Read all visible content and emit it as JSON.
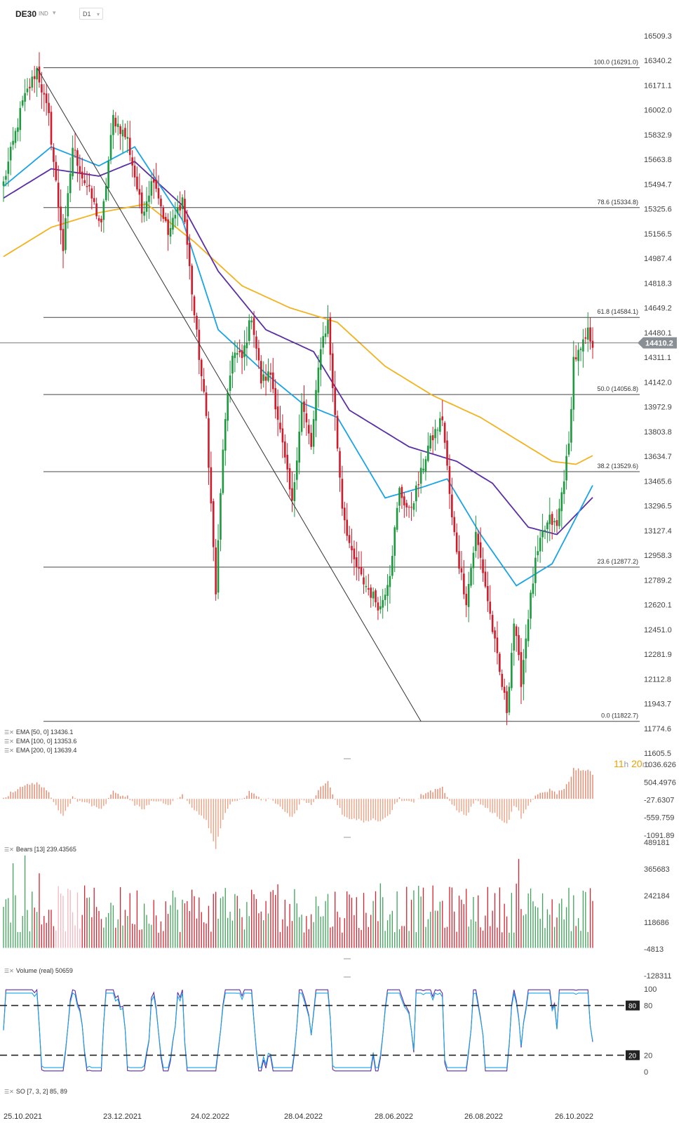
{
  "header": {
    "symbol": "DE30",
    "exchange": "IND",
    "timeframe": "D1"
  },
  "countdown": {
    "hours": "11",
    "h": "h",
    "minutes": "20",
    "m": "m"
  },
  "price_axis": [
    "16509.3",
    "16340.2",
    "16171.1",
    "16002.0",
    "15832.9",
    "15663.8",
    "15494.7",
    "15325.6",
    "15156.5",
    "14987.4",
    "14818.3",
    "14649.2",
    "14480.1",
    "14311.1",
    "14142.0",
    "13972.9",
    "13803.8",
    "13634.7",
    "13465.6",
    "13296.5",
    "13127.4",
    "12958.3",
    "12789.2",
    "12620.1",
    "12451.0",
    "12281.9",
    "12112.8",
    "11943.7",
    "11774.6",
    "11605.5"
  ],
  "current_price": "14410.2",
  "fib_levels": [
    {
      "label": "100.0 (16291.0)",
      "value": 16291.0
    },
    {
      "label": "78.6 (15334.8)",
      "value": 15334.8
    },
    {
      "label": "61.8 (14584.1)",
      "value": 14584.1
    },
    {
      "label": "50.0 (14056.8)",
      "value": 14056.8
    },
    {
      "label": "38.2 (13529.6)",
      "value": 13529.6
    },
    {
      "label": "23.6 (12877.2)",
      "value": 12877.2
    },
    {
      "label": "0.0 (11822.7)",
      "value": 11822.7
    }
  ],
  "ema_labels": [
    {
      "text": "EMA [50, 0]  13436.1",
      "color": "#1aa3e8"
    },
    {
      "text": "EMA [100, 0]  13353.6",
      "color": "#5a2ea6"
    },
    {
      "text": "EMA [200, 0]  13639.4",
      "color": "#f2b320"
    }
  ],
  "bears": {
    "label": "Bears [13]  239.43565",
    "axis": [
      "1036.626",
      "504.4976",
      "-27.6307",
      "-559.759",
      "-1091.89"
    ]
  },
  "volume": {
    "label": "Volume  (real)  50659",
    "axis": [
      "489181",
      "365683",
      "242184",
      "118686",
      "-4813",
      "-128311"
    ]
  },
  "so": {
    "label": "SO [7, 3, 2]  85, 89",
    "axis": [
      "100",
      "80",
      "20",
      "0"
    ],
    "marker_80": "80",
    "marker_20": "20"
  },
  "date_axis": [
    "25.10.2021",
    "23.12.2021",
    "24.02.2022",
    "28.04.2022",
    "28.06.2022",
    "26.08.2022",
    "26.10.2022"
  ],
  "chart_data": {
    "type": "candlestick",
    "x_range": [
      "25.10.2021",
      "11.11.2022"
    ],
    "ylim": [
      11605.5,
      16509.3
    ],
    "anchors": [
      {
        "bar": 0,
        "close": 15500
      },
      {
        "bar": 8,
        "close": 16050
      },
      {
        "bar": 14,
        "close": 16280
      },
      {
        "bar": 19,
        "close": 15950
      },
      {
        "bar": 25,
        "close": 15050
      },
      {
        "bar": 29,
        "close": 15750
      },
      {
        "bar": 33,
        "close": 15550
      },
      {
        "bar": 37,
        "close": 15400
      },
      {
        "bar": 41,
        "close": 15200
      },
      {
        "bar": 46,
        "close": 15950
      },
      {
        "bar": 52,
        "close": 15800
      },
      {
        "bar": 58,
        "close": 15300
      },
      {
        "bar": 63,
        "close": 15550
      },
      {
        "bar": 69,
        "close": 15150
      },
      {
        "bar": 75,
        "close": 15400
      },
      {
        "bar": 80,
        "close": 14600
      },
      {
        "bar": 85,
        "close": 13900
      },
      {
        "bar": 89,
        "close": 12700
      },
      {
        "bar": 92,
        "close": 13700
      },
      {
        "bar": 96,
        "close": 14350
      },
      {
        "bar": 100,
        "close": 14300
      },
      {
        "bar": 104,
        "close": 14600
      },
      {
        "bar": 108,
        "close": 14150
      },
      {
        "bar": 112,
        "close": 14200
      },
      {
        "bar": 117,
        "close": 13700
      },
      {
        "bar": 121,
        "close": 13300
      },
      {
        "bar": 125,
        "close": 14000
      },
      {
        "bar": 129,
        "close": 13700
      },
      {
        "bar": 133,
        "close": 14400
      },
      {
        "bar": 136,
        "close": 14550
      },
      {
        "bar": 139,
        "close": 13900
      },
      {
        "bar": 142,
        "close": 13300
      },
      {
        "bar": 146,
        "close": 12950
      },
      {
        "bar": 150,
        "close": 12800
      },
      {
        "bar": 154,
        "close": 12700
      },
      {
        "bar": 158,
        "close": 12600
      },
      {
        "bar": 162,
        "close": 12850
      },
      {
        "bar": 166,
        "close": 13400
      },
      {
        "bar": 170,
        "close": 13250
      },
      {
        "bar": 174,
        "close": 13450
      },
      {
        "bar": 178,
        "close": 13700
      },
      {
        "bar": 181,
        "close": 13800
      },
      {
        "bar": 184,
        "close": 13900
      },
      {
        "bar": 188,
        "close": 13200
      },
      {
        "bar": 191,
        "close": 12900
      },
      {
        "bar": 194,
        "close": 12650
      },
      {
        "bar": 198,
        "close": 13100
      },
      {
        "bar": 201,
        "close": 12850
      },
      {
        "bar": 205,
        "close": 12450
      },
      {
        "bar": 208,
        "close": 12150
      },
      {
        "bar": 211,
        "close": 11900
      },
      {
        "bar": 214,
        "close": 12500
      },
      {
        "bar": 217,
        "close": 12100
      },
      {
        "bar": 220,
        "close": 12550
      },
      {
        "bar": 223,
        "close": 12900
      },
      {
        "bar": 226,
        "close": 13100
      },
      {
        "bar": 229,
        "close": 13200
      },
      {
        "bar": 232,
        "close": 13150
      },
      {
        "bar": 235,
        "close": 13500
      },
      {
        "bar": 237,
        "close": 13700
      },
      {
        "bar": 239,
        "close": 14300
      },
      {
        "bar": 242,
        "close": 14350
      },
      {
        "bar": 245,
        "close": 14480
      },
      {
        "bar": 247,
        "close": 14410
      }
    ],
    "ema_50": [
      {
        "bar": 0,
        "v": 15480
      },
      {
        "bar": 20,
        "v": 15750
      },
      {
        "bar": 40,
        "v": 15620
      },
      {
        "bar": 55,
        "v": 15750
      },
      {
        "bar": 75,
        "v": 15250
      },
      {
        "bar": 90,
        "v": 14500
      },
      {
        "bar": 110,
        "v": 14200
      },
      {
        "bar": 125,
        "v": 14000
      },
      {
        "bar": 140,
        "v": 13900
      },
      {
        "bar": 160,
        "v": 13350
      },
      {
        "bar": 175,
        "v": 13420
      },
      {
        "bar": 186,
        "v": 13480
      },
      {
        "bar": 200,
        "v": 13100
      },
      {
        "bar": 215,
        "v": 12750
      },
      {
        "bar": 230,
        "v": 12900
      },
      {
        "bar": 247,
        "v": 13436
      }
    ],
    "ema_100": [
      {
        "bar": 0,
        "v": 15400
      },
      {
        "bar": 20,
        "v": 15600
      },
      {
        "bar": 40,
        "v": 15550
      },
      {
        "bar": 55,
        "v": 15650
      },
      {
        "bar": 75,
        "v": 15350
      },
      {
        "bar": 90,
        "v": 14900
      },
      {
        "bar": 110,
        "v": 14500
      },
      {
        "bar": 130,
        "v": 14350
      },
      {
        "bar": 145,
        "v": 13950
      },
      {
        "bar": 170,
        "v": 13700
      },
      {
        "bar": 190,
        "v": 13600
      },
      {
        "bar": 205,
        "v": 13450
      },
      {
        "bar": 220,
        "v": 13150
      },
      {
        "bar": 232,
        "v": 13100
      },
      {
        "bar": 247,
        "v": 13353
      }
    ],
    "ema_200": [
      {
        "bar": 0,
        "v": 15000
      },
      {
        "bar": 20,
        "v": 15200
      },
      {
        "bar": 40,
        "v": 15300
      },
      {
        "bar": 60,
        "v": 15360
      },
      {
        "bar": 80,
        "v": 15100
      },
      {
        "bar": 100,
        "v": 14800
      },
      {
        "bar": 120,
        "v": 14650
      },
      {
        "bar": 140,
        "v": 14550
      },
      {
        "bar": 160,
        "v": 14250
      },
      {
        "bar": 180,
        "v": 14050
      },
      {
        "bar": 200,
        "v": 13900
      },
      {
        "bar": 215,
        "v": 13750
      },
      {
        "bar": 230,
        "v": 13600
      },
      {
        "bar": 240,
        "v": 13580
      },
      {
        "bar": 247,
        "v": 13639
      }
    ],
    "trend_line": [
      {
        "bar": 14,
        "price": 16291.0
      },
      {
        "bar": 175,
        "price": 11822.7
      }
    ],
    "legend": "bottom-left"
  }
}
